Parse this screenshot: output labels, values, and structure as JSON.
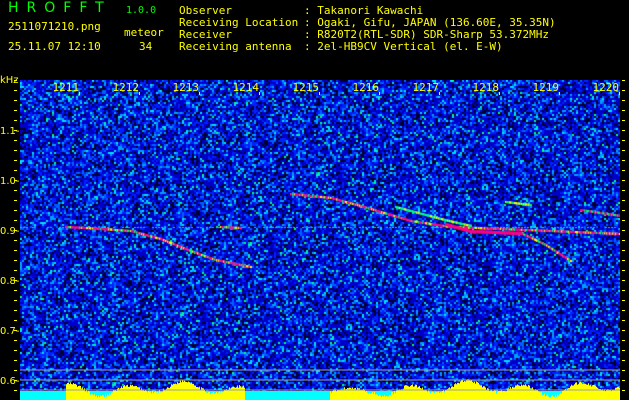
{
  "header": {
    "app_title": "HROFFT",
    "version": "1.0.0",
    "filename": "2511071210.png",
    "datetime": "25.11.07 12:10",
    "meteor_label": "meteor",
    "meteor_count": "34",
    "info": [
      {
        "label": "Observer",
        "value": ": Takanori Kawachi"
      },
      {
        "label": "Receiving Location",
        "value": ": Ogaki, Gifu, JAPAN (136.60E, 35.35N)"
      },
      {
        "label": "Receiver",
        "value": ": R820T2(RTL-SDR) SDR-Sharp 53.372MHz"
      },
      {
        "label": "Receiving antenna",
        "value": ": 2el-HB9CV Vertical (el. E-W)"
      }
    ]
  },
  "axes": {
    "y_unit": "kHz",
    "y_labels": [
      "1.1",
      "1.0",
      "0.9",
      "0.8",
      "0.7",
      "0.6"
    ],
    "x_labels": [
      "1211",
      "1212",
      "1213",
      "1214",
      "1215",
      "1216",
      "1217",
      "1218",
      "1219",
      "1220"
    ]
  },
  "colors": {
    "text": "#ffff00",
    "title": "#00ff00",
    "background": "#000000",
    "noise": "#0000c0",
    "trace_hot": "#ff0080",
    "profile": "#ffff00",
    "baseline": "#00ffff"
  }
}
